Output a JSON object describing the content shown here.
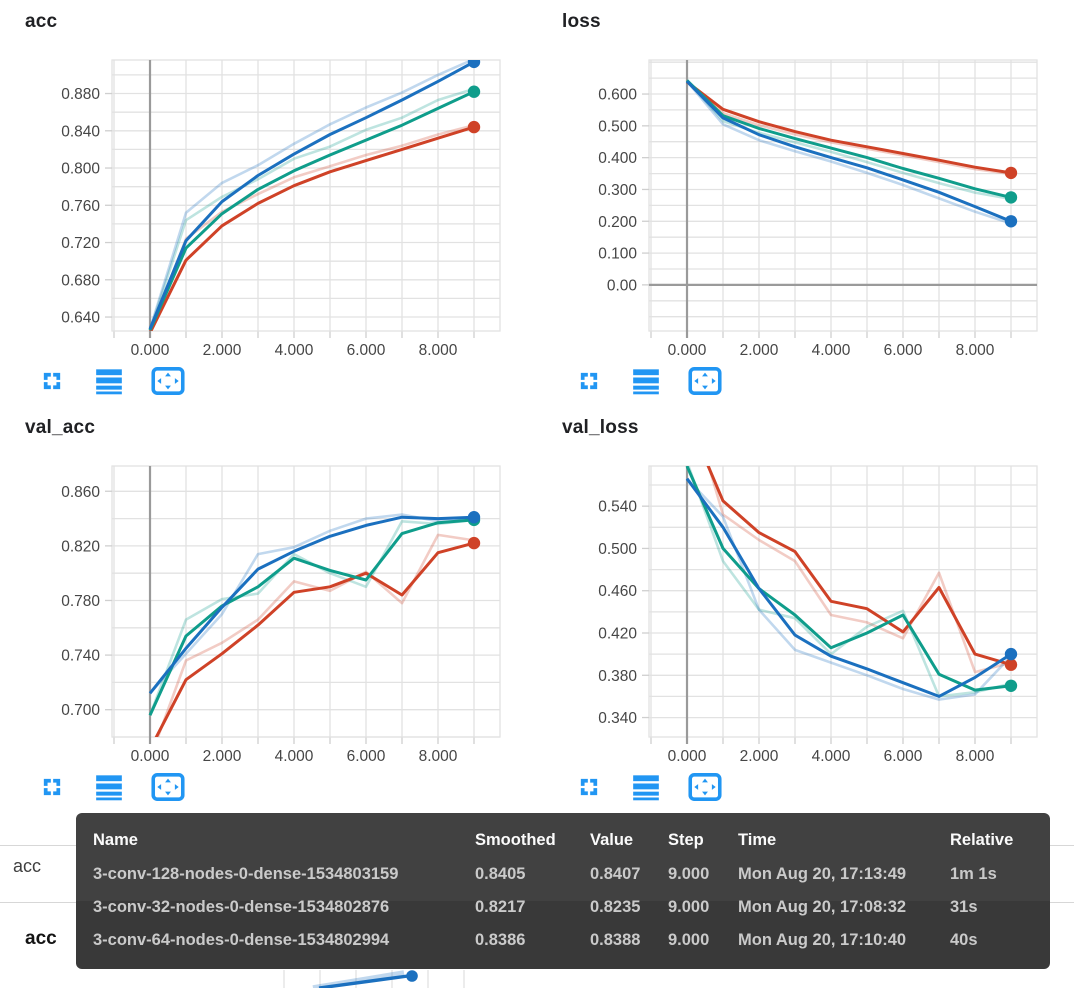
{
  "colors": {
    "run_blue": "#1b70bf",
    "run_red": "#cf4227",
    "run_teal": "#0f9d8b",
    "icon_blue": "#2196f3",
    "grid": "#e2e2e2",
    "zero_axis": "#9a9a9a",
    "tick_text": "#464646",
    "tooltip_bg": "#3d3d3d"
  },
  "toolbar": {
    "icons": [
      "fullscreen-icon",
      "runs-toggle-icon",
      "fit-domain-icon"
    ]
  },
  "fragments": {
    "section_label": "acc",
    "next_chart_title": "acc"
  },
  "tooltip": {
    "headers": {
      "name": "Name",
      "smoothed": "Smoothed",
      "value": "Value",
      "step": "Step",
      "time": "Time",
      "relative": "Relative"
    },
    "rows": [
      {
        "name": "3-conv-128-nodes-0-dense-1534803159",
        "smoothed": "0.8405",
        "value": "0.8407",
        "step": "9.000",
        "time": "Mon Aug 20, 17:13:49",
        "relative": "1m 1s",
        "color": "#1b70bf",
        "highlighted": false
      },
      {
        "name": "3-conv-32-nodes-0-dense-1534802876",
        "smoothed": "0.8217",
        "value": "0.8235",
        "step": "9.000",
        "time": "Mon Aug 20, 17:08:32",
        "relative": "31s",
        "color": "#cf4227",
        "highlighted": true
      },
      {
        "name": "3-conv-64-nodes-0-dense-1534802994",
        "smoothed": "0.8386",
        "value": "0.8388",
        "step": "9.000",
        "time": "Mon Aug 20, 17:10:40",
        "relative": "40s",
        "color": "#0f9d8b",
        "highlighted": false
      }
    ]
  },
  "chart_data": [
    {
      "type": "line",
      "title": "acc",
      "x": [
        0,
        1,
        2,
        3,
        4,
        5,
        6,
        7,
        8,
        9
      ],
      "xlim": [
        -1.056,
        9.722
      ],
      "ylim": [
        0.625,
        0.916
      ],
      "y_minor_step": 0.02,
      "y_major": [
        {
          "v": 0.64,
          "label": "0.640"
        },
        {
          "v": 0.68,
          "label": "0.680"
        },
        {
          "v": 0.72,
          "label": "0.720"
        },
        {
          "v": 0.76,
          "label": "0.760"
        },
        {
          "v": 0.8,
          "label": "0.800"
        },
        {
          "v": 0.84,
          "label": "0.840"
        },
        {
          "v": 0.88,
          "label": "0.880"
        }
      ],
      "x_ticks": [
        {
          "v": 0,
          "label": "0.000"
        },
        {
          "v": 2,
          "label": "2.000"
        },
        {
          "v": 4,
          "label": "4.000"
        },
        {
          "v": 6,
          "label": "6.000"
        },
        {
          "v": 8,
          "label": "8.000"
        }
      ],
      "series": [
        {
          "name": "3-conv-32-nodes-0-dense-1534802876",
          "color": "#cf4227",
          "smoothed": [
            0.623,
            0.701,
            0.738,
            0.762,
            0.781,
            0.796,
            0.808,
            0.82,
            0.832,
            0.844
          ],
          "raw": [
            0.623,
            0.724,
            0.753,
            0.772,
            0.79,
            0.802,
            0.814,
            0.824,
            0.836,
            0.846
          ]
        },
        {
          "name": "3-conv-64-nodes-0-dense-1534802994",
          "color": "#0f9d8b",
          "smoothed": [
            0.626,
            0.714,
            0.751,
            0.777,
            0.797,
            0.814,
            0.83,
            0.846,
            0.864,
            0.882
          ],
          "raw": [
            0.626,
            0.744,
            0.769,
            0.788,
            0.81,
            0.823,
            0.841,
            0.854,
            0.873,
            0.885
          ]
        },
        {
          "name": "3-conv-128-nodes-0-dense-1534803159",
          "color": "#1b70bf",
          "smoothed": [
            0.627,
            0.722,
            0.764,
            0.792,
            0.815,
            0.836,
            0.854,
            0.873,
            0.893,
            0.914
          ],
          "raw": [
            0.627,
            0.752,
            0.784,
            0.803,
            0.826,
            0.847,
            0.865,
            0.881,
            0.9,
            0.917
          ]
        }
      ]
    },
    {
      "type": "line",
      "title": "loss",
      "x": [
        0,
        1,
        2,
        3,
        4,
        5,
        6,
        7,
        8,
        9
      ],
      "xlim": [
        -1.056,
        9.722
      ],
      "ylim": [
        -0.145,
        0.707
      ],
      "y_minor_step": 0.05,
      "y_major": [
        {
          "v": 0.0,
          "label": "0.00"
        },
        {
          "v": 0.1,
          "label": "0.100"
        },
        {
          "v": 0.2,
          "label": "0.200"
        },
        {
          "v": 0.3,
          "label": "0.300"
        },
        {
          "v": 0.4,
          "label": "0.400"
        },
        {
          "v": 0.5,
          "label": "0.500"
        },
        {
          "v": 0.6,
          "label": "0.600"
        }
      ],
      "x_ticks": [
        {
          "v": 0,
          "label": "0.000"
        },
        {
          "v": 2,
          "label": "2.000"
        },
        {
          "v": 4,
          "label": "4.000"
        },
        {
          "v": 6,
          "label": "6.000"
        },
        {
          "v": 8,
          "label": "8.000"
        }
      ],
      "series": [
        {
          "name": "3-conv-32-nodes-0-dense-1534802876",
          "color": "#cf4227",
          "smoothed": [
            0.638,
            0.552,
            0.513,
            0.482,
            0.455,
            0.434,
            0.413,
            0.392,
            0.37,
            0.352
          ],
          "raw": [
            0.638,
            0.54,
            0.502,
            0.473,
            0.448,
            0.428,
            0.407,
            0.386,
            0.364,
            0.349
          ]
        },
        {
          "name": "3-conv-64-nodes-0-dense-1534802994",
          "color": "#0f9d8b",
          "smoothed": [
            0.643,
            0.532,
            0.492,
            0.46,
            0.43,
            0.4,
            0.366,
            0.335,
            0.302,
            0.275
          ],
          "raw": [
            0.643,
            0.515,
            0.478,
            0.448,
            0.418,
            0.386,
            0.352,
            0.32,
            0.29,
            0.27
          ]
        },
        {
          "name": "3-conv-128-nodes-0-dense-1534803159",
          "color": "#1b70bf",
          "smoothed": [
            0.64,
            0.525,
            0.472,
            0.434,
            0.4,
            0.368,
            0.33,
            0.291,
            0.246,
            0.2
          ],
          "raw": [
            0.64,
            0.505,
            0.455,
            0.42,
            0.388,
            0.352,
            0.314,
            0.272,
            0.23,
            0.193
          ]
        }
      ]
    },
    {
      "type": "line",
      "title": "val_acc",
      "x": [
        0,
        1,
        2,
        3,
        4,
        5,
        6,
        7,
        8,
        9
      ],
      "xlim": [
        -1.056,
        9.722
      ],
      "ylim": [
        0.68,
        0.8785
      ],
      "y_minor_step": 0.02,
      "y_major": [
        {
          "v": 0.7,
          "label": "0.700"
        },
        {
          "v": 0.74,
          "label": "0.740"
        },
        {
          "v": 0.78,
          "label": "0.780"
        },
        {
          "v": 0.82,
          "label": "0.820"
        },
        {
          "v": 0.86,
          "label": "0.860"
        }
      ],
      "x_ticks": [
        {
          "v": 0,
          "label": "0.000"
        },
        {
          "v": 2,
          "label": "2.000"
        },
        {
          "v": 4,
          "label": "4.000"
        },
        {
          "v": 6,
          "label": "6.000"
        },
        {
          "v": 8,
          "label": "8.000"
        }
      ],
      "series": [
        {
          "name": "3-conv-32-nodes-0-dense-1534802876",
          "color": "#cf4227",
          "smoothed": [
            0.671,
            0.722,
            0.741,
            0.762,
            0.786,
            0.79,
            0.8,
            0.784,
            0.815,
            0.822
          ],
          "raw": [
            0.664,
            0.736,
            0.749,
            0.766,
            0.794,
            0.787,
            0.801,
            0.778,
            0.828,
            0.824
          ]
        },
        {
          "name": "3-conv-64-nodes-0-dense-1534802994",
          "color": "#0f9d8b",
          "smoothed": [
            0.696,
            0.754,
            0.776,
            0.79,
            0.811,
            0.802,
            0.795,
            0.829,
            0.837,
            0.839
          ],
          "raw": [
            0.696,
            0.766,
            0.781,
            0.785,
            0.814,
            0.8,
            0.79,
            0.838,
            0.836,
            0.839
          ]
        },
        {
          "name": "3-conv-128-nodes-0-dense-1534803159",
          "color": "#1b70bf",
          "smoothed": [
            0.712,
            0.745,
            0.775,
            0.803,
            0.816,
            0.827,
            0.835,
            0.841,
            0.84,
            0.841
          ],
          "raw": [
            0.712,
            0.741,
            0.77,
            0.814,
            0.819,
            0.831,
            0.84,
            0.843,
            0.838,
            0.841
          ]
        }
      ]
    },
    {
      "type": "line",
      "title": "val_loss",
      "x": [
        0,
        1,
        2,
        3,
        4,
        5,
        6,
        7,
        8,
        9
      ],
      "xlim": [
        -1.056,
        9.722
      ],
      "ylim": [
        0.3216,
        0.578
      ],
      "y_minor_step": 0.02,
      "y_major": [
        {
          "v": 0.34,
          "label": "0.340"
        },
        {
          "v": 0.38,
          "label": "0.380"
        },
        {
          "v": 0.42,
          "label": "0.420"
        },
        {
          "v": 0.46,
          "label": "0.460"
        },
        {
          "v": 0.5,
          "label": "0.500"
        },
        {
          "v": 0.54,
          "label": "0.540"
        }
      ],
      "x_ticks": [
        {
          "v": 0,
          "label": "0.000"
        },
        {
          "v": 2,
          "label": "2.000"
        },
        {
          "v": 4,
          "label": "4.000"
        },
        {
          "v": 6,
          "label": "6.000"
        },
        {
          "v": 8,
          "label": "8.000"
        }
      ],
      "series": [
        {
          "name": "3-conv-32-nodes-0-dense-1534802876",
          "color": "#cf4227",
          "smoothed": [
            0.625,
            0.545,
            0.515,
            0.497,
            0.45,
            0.443,
            0.421,
            0.463,
            0.4,
            0.39
          ],
          "raw": [
            0.648,
            0.532,
            0.508,
            0.488,
            0.437,
            0.43,
            0.415,
            0.477,
            0.383,
            0.392
          ]
        },
        {
          "name": "3-conv-64-nodes-0-dense-1534802994",
          "color": "#0f9d8b",
          "smoothed": [
            0.578,
            0.5,
            0.462,
            0.437,
            0.406,
            0.42,
            0.437,
            0.381,
            0.366,
            0.37
          ],
          "raw": [
            0.582,
            0.488,
            0.442,
            0.434,
            0.4,
            0.426,
            0.441,
            0.36,
            0.364,
            0.372
          ]
        },
        {
          "name": "3-conv-128-nodes-0-dense-1534803159",
          "color": "#1b70bf",
          "smoothed": [
            0.566,
            0.52,
            0.462,
            0.418,
            0.398,
            0.386,
            0.373,
            0.36,
            0.378,
            0.4
          ],
          "raw": [
            0.566,
            0.53,
            0.442,
            0.404,
            0.392,
            0.38,
            0.367,
            0.357,
            0.362,
            0.398
          ]
        }
      ]
    }
  ]
}
